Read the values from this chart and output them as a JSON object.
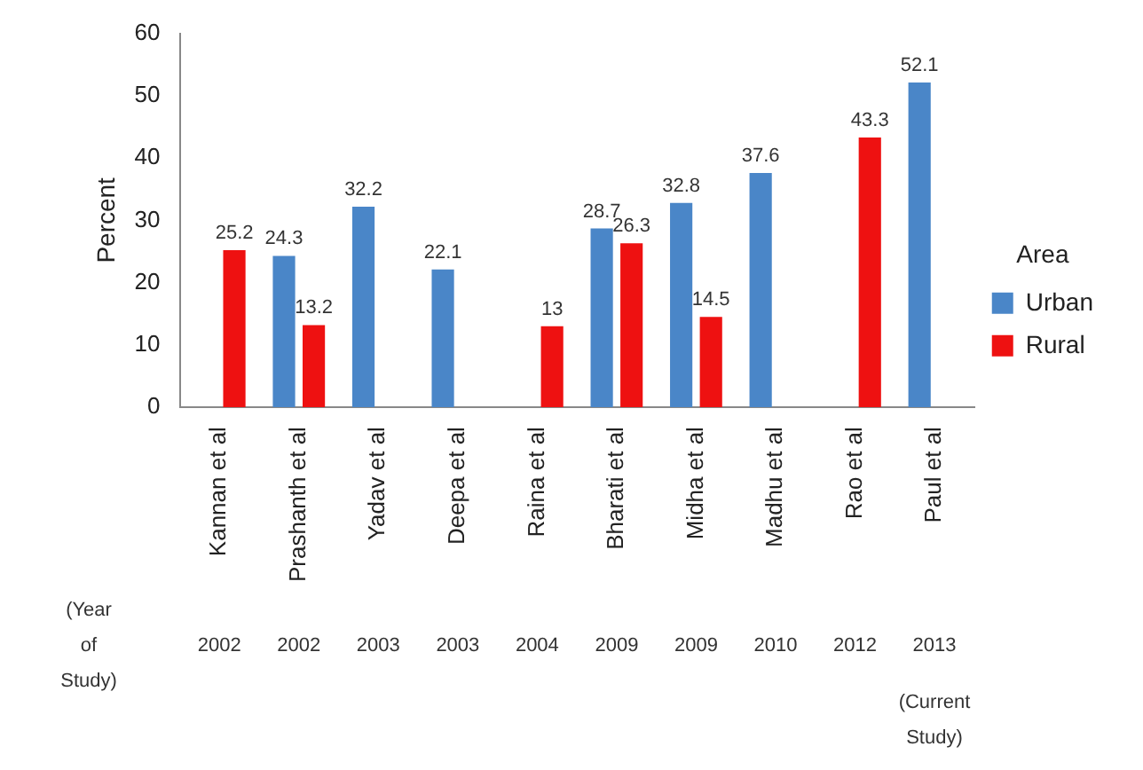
{
  "chart_data": {
    "type": "bar",
    "ylabel": "Percent",
    "legend_title": "Area",
    "categories": [
      "Kannan et al",
      "Prashanth et al",
      "Yadav et al",
      "Deepa et al",
      "Raina et al",
      "Bharati et al",
      "Midha et al",
      "Madhu et al",
      "Rao et al",
      "Paul et al"
    ],
    "series": [
      {
        "name": "Urban",
        "color": "#4a86c8",
        "values": [
          null,
          24.3,
          32.2,
          22.1,
          null,
          28.7,
          32.8,
          37.6,
          null,
          52.1
        ]
      },
      {
        "name": "Rural",
        "color": "#ee1111",
        "values": [
          25.2,
          13.2,
          null,
          null,
          13,
          26.3,
          14.5,
          null,
          43.3,
          null
        ]
      }
    ],
    "ylim": [
      0,
      60
    ],
    "yticks": [
      0,
      10,
      20,
      30,
      40,
      50,
      60
    ],
    "grid": false,
    "legend": "right",
    "data_labels": true,
    "annotations": [
      "(Year of Study)",
      "2002",
      "2002",
      "2003",
      "2003",
      "2004",
      "2009",
      "2009",
      "2010",
      "2012",
      "2013",
      "(Current Study)"
    ]
  }
}
